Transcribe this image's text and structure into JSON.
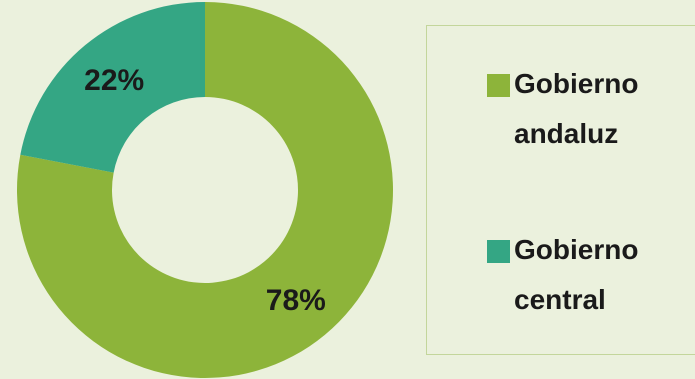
{
  "chart_data": {
    "type": "pie",
    "title": "",
    "categories": [
      "Gobierno andaluz",
      "Gobierno central"
    ],
    "values": [
      78,
      22
    ],
    "value_labels": [
      "78%",
      "22%"
    ],
    "colors": [
      "#8db43a",
      "#34a684"
    ],
    "donut": true,
    "legend_placement": "right"
  },
  "legend": {
    "items": [
      {
        "label": "Gobierno andaluz",
        "color": "#8db43a"
      },
      {
        "label": "Gobierno central",
        "color": "#34a684"
      }
    ]
  }
}
